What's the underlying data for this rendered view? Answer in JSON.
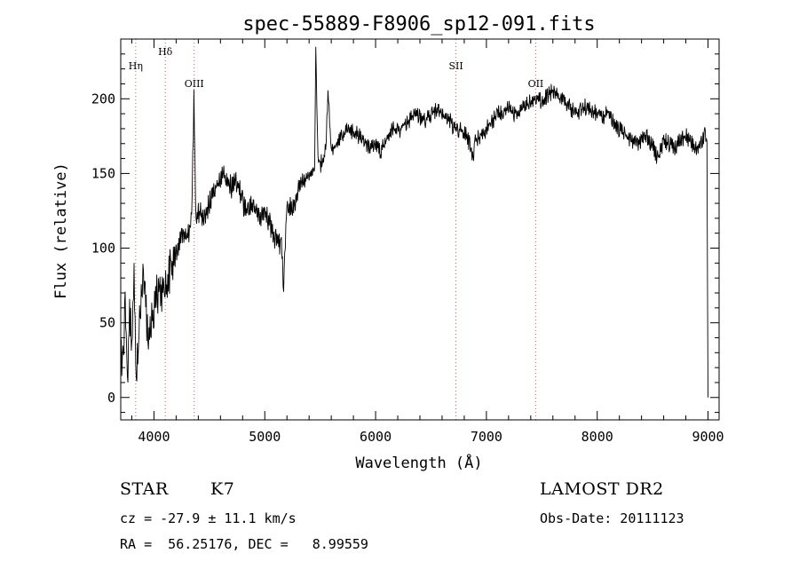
{
  "chart_data": {
    "type": "line",
    "title": "spec-55889-F8906_sp12-091.fits",
    "xlabel": "Wavelength (Å)",
    "ylabel": "Flux (relative)",
    "xlim": [
      3700,
      9100
    ],
    "ylim": [
      -15,
      240
    ],
    "x_ticks": [
      4000,
      5000,
      6000,
      7000,
      8000,
      9000
    ],
    "y_ticks": [
      0,
      50,
      100,
      150,
      200
    ],
    "grid": false,
    "legend": "none",
    "series": [
      {
        "x": [
          3700,
          3720,
          3740,
          3760,
          3780,
          3800,
          3820,
          3840,
          3860,
          3880,
          3900,
          3950,
          4000,
          4050,
          4100,
          4150,
          4200,
          4250,
          4300,
          4340,
          4360,
          4380,
          4400,
          4450,
          4500,
          4550,
          4600,
          4650,
          4700,
          4750,
          4800,
          4850,
          4900,
          4950,
          5000,
          5050,
          5100,
          5150,
          5170,
          5200,
          5250,
          5300,
          5350,
          5400,
          5450,
          5460,
          5480,
          5500,
          5550,
          5570,
          5600,
          5650,
          5700,
          5750,
          5800,
          5850,
          5900,
          5950,
          6000,
          6050,
          6100,
          6150,
          6200,
          6250,
          6300,
          6350,
          6400,
          6450,
          6500,
          6550,
          6600,
          6650,
          6700,
          6750,
          6800,
          6850,
          6880,
          6900,
          6950,
          7000,
          7050,
          7100,
          7150,
          7200,
          7250,
          7300,
          7350,
          7400,
          7450,
          7500,
          7550,
          7600,
          7650,
          7700,
          7750,
          7800,
          7850,
          7900,
          7950,
          8000,
          8050,
          8100,
          8150,
          8200,
          8250,
          8300,
          8350,
          8400,
          8450,
          8500,
          8550,
          8600,
          8650,
          8700,
          8750,
          8800,
          8850,
          8900,
          8950,
          8970,
          8990,
          9000
        ],
        "y": [
          40,
          20,
          70,
          5,
          60,
          30,
          80,
          10,
          45,
          60,
          90,
          35,
          60,
          75,
          70,
          85,
          95,
          110,
          105,
          120,
          200,
          115,
          125,
          120,
          130,
          140,
          145,
          150,
          140,
          145,
          130,
          125,
          130,
          120,
          125,
          115,
          105,
          100,
          75,
          130,
          125,
          140,
          145,
          150,
          155,
          230,
          160,
          155,
          165,
          205,
          165,
          170,
          175,
          180,
          178,
          175,
          172,
          168,
          170,
          165,
          172,
          180,
          178,
          182,
          185,
          190,
          188,
          185,
          190,
          192,
          190,
          188,
          182,
          180,
          178,
          170,
          160,
          172,
          175,
          180,
          185,
          190,
          192,
          195,
          190,
          192,
          195,
          198,
          200,
          198,
          202,
          205,
          200,
          198,
          195,
          190,
          192,
          195,
          193,
          190,
          188,
          192,
          185,
          180,
          175,
          172,
          170,
          172,
          175,
          168,
          160,
          172,
          170,
          168,
          172,
          175,
          170,
          168,
          172,
          175,
          170,
          0
        ]
      }
    ],
    "annotations": [
      {
        "label": "Hη",
        "x": 3835
      },
      {
        "label": "Hδ",
        "x": 4102
      },
      {
        "label": "OIII",
        "x": 4363
      },
      {
        "label": "SII",
        "x": 6725
      },
      {
        "label": "OII",
        "x": 7445
      }
    ]
  },
  "info": {
    "object_class": "STAR",
    "subclass": "K7",
    "survey": "LAMOST DR2",
    "cz": "cz = -27.9 ± 11.1 km/s",
    "obs_date": "Obs-Date: 20111123",
    "coords": "RA =  56.25176, DEC =   8.99559"
  }
}
